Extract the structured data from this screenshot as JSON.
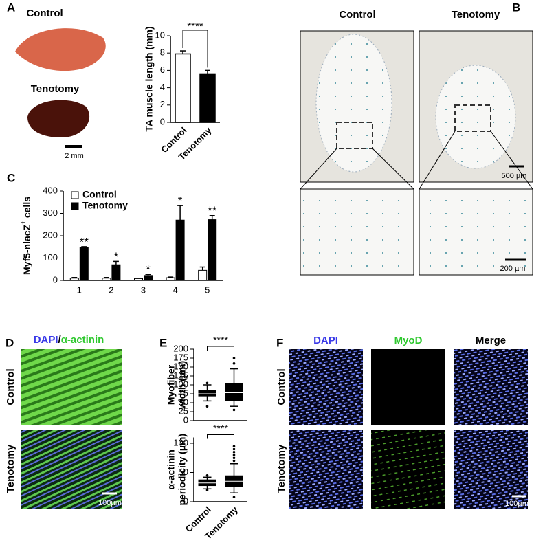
{
  "panel_labels": [
    "A",
    "B",
    "C",
    "D",
    "E",
    "F"
  ],
  "panel_a": {
    "photo_labels": [
      "Control",
      "Tenotomy"
    ],
    "scale_bar": "2 mm"
  },
  "panel_b": {
    "headers": [
      "Control",
      "Tenotomy"
    ],
    "scale_bars": [
      "500 µm",
      "200 µm"
    ]
  },
  "panel_d": {
    "title": [
      "DAPI",
      "/",
      "α-actinin"
    ],
    "row_labels": [
      "Control",
      "Tenotomy"
    ],
    "scale_bar": "100µm"
  },
  "panel_f": {
    "headers": [
      "DAPI",
      "MyoD",
      "Merge"
    ],
    "row_labels": [
      "Control",
      "Tenotomy"
    ],
    "scale_bar": "100µm"
  },
  "chart_data": [
    {
      "type": "bar",
      "ylabel": "TA muscle length (mm)",
      "categories": [
        "Control",
        "Tenotomy"
      ],
      "values": [
        7.9,
        5.6
      ],
      "errors": [
        0.35,
        0.4
      ],
      "colors": [
        "#ffffff",
        "#000000"
      ],
      "ylim": [
        0,
        10
      ],
      "yticks": [
        0,
        2,
        4,
        6,
        8,
        10
      ],
      "annotations": [
        "****"
      ]
    },
    {
      "type": "grouped-bar",
      "ylabel": [
        "Myf5-nlacZ",
        "+",
        " cells"
      ],
      "categories": [
        "1",
        "2",
        "3",
        "4",
        "5"
      ],
      "series": [
        {
          "name": "Control",
          "color": "#ffffff",
          "values": [
            10,
            10,
            8,
            12,
            45
          ],
          "errors": [
            3,
            3,
            2,
            3,
            15
          ]
        },
        {
          "name": "Tenotomy",
          "color": "#000000",
          "values": [
            148,
            70,
            22,
            270,
            272
          ],
          "errors": [
            3,
            15,
            5,
            65,
            18
          ]
        }
      ],
      "ylim": [
        0,
        400
      ],
      "yticks": [
        0,
        100,
        200,
        300,
        400
      ],
      "annotations": [
        "**",
        "*",
        "*",
        "*",
        "**"
      ],
      "legend": "upper-left"
    },
    {
      "type": "box",
      "ylabel": [
        "Myofiber",
        "width (µm)"
      ],
      "boxes": [
        {
          "min": 55,
          "q1": 68,
          "median": 75,
          "q3": 85,
          "max": 100,
          "outliers": [
            40,
            105
          ]
        },
        {
          "min": 40,
          "q1": 55,
          "median": 78,
          "q3": 105,
          "max": 145,
          "outliers": [
            30,
            160,
            175
          ]
        }
      ],
      "ylim": [
        0,
        200
      ],
      "yticks": [
        0,
        25,
        50,
        75,
        100,
        125,
        150,
        175,
        200
      ],
      "annotations": [
        "****"
      ]
    },
    {
      "type": "box",
      "ylabel": [
        "α-actinin",
        "periodicity (µm)"
      ],
      "categories": [
        "Control",
        "Tenotomy"
      ],
      "boxes": [
        {
          "min": 22,
          "q1": 27,
          "median": 32,
          "q3": 38,
          "max": 42,
          "outliers": [
            20,
            45
          ]
        },
        {
          "min": 15,
          "q1": 25,
          "median": 35,
          "q3": 45,
          "max": 65,
          "outliers": [
            8,
            70,
            75,
            80,
            85,
            90,
            95
          ]
        }
      ],
      "ylim": [
        0,
        110
      ],
      "yticks": [
        0,
        50,
        100
      ],
      "annotations": [
        "****"
      ]
    }
  ]
}
